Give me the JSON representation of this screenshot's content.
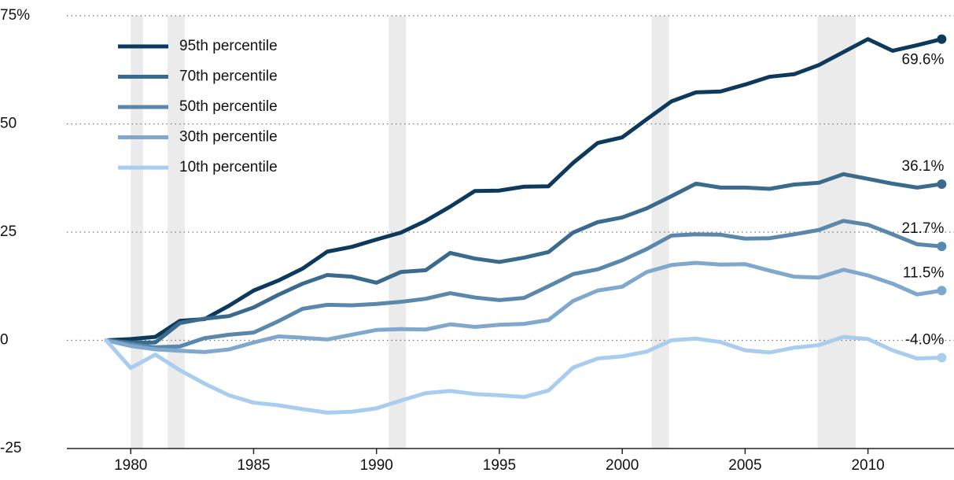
{
  "chart_data": {
    "type": "line",
    "x": [
      1979,
      1980,
      1981,
      1982,
      1983,
      1984,
      1985,
      1986,
      1987,
      1988,
      1989,
      1990,
      1991,
      1992,
      1993,
      1994,
      1995,
      1996,
      1997,
      1998,
      1999,
      2000,
      2001,
      2002,
      2003,
      2004,
      2005,
      2006,
      2007,
      2008,
      2009,
      2010,
      2011,
      2012,
      2013
    ],
    "series": [
      {
        "name": "95th percentile",
        "color": "#0d3a5c",
        "values": [
          0,
          0.3,
          0.8,
          4.5,
          4.9,
          8,
          11.5,
          13.8,
          16.6,
          20.5,
          21.6,
          23.3,
          24.9,
          27.6,
          30.9,
          34.5,
          34.6,
          35.5,
          35.6,
          41,
          45.6,
          46.9,
          51.1,
          55.2,
          57.3,
          57.5,
          59.1,
          60.9,
          61.5,
          63.6,
          66.6,
          69.6,
          66.9,
          68.2,
          69.6
        ],
        "value_labels": [
          null,
          null,
          null,
          null,
          null,
          null,
          null,
          null,
          null,
          null,
          null,
          null,
          null,
          null,
          null,
          null,
          null,
          null,
          null,
          null,
          null,
          null,
          null,
          null,
          null,
          null,
          null,
          null,
          null,
          null,
          null,
          null,
          null,
          null,
          "69.6%"
        ]
      },
      {
        "name": "70th percentile",
        "color": "#3a6a8e",
        "values": [
          0,
          -0.5,
          -0.5,
          4,
          5,
          5.6,
          7.6,
          10.5,
          13.1,
          15.1,
          14.7,
          13.3,
          15.8,
          16.2,
          20.2,
          18.9,
          18.1,
          19.1,
          20.4,
          24.9,
          27.3,
          28.4,
          30.5,
          33.3,
          36.2,
          35.3,
          35.3,
          35,
          36,
          36.4,
          38.4,
          37.3,
          36.2,
          35.3,
          36.1
        ],
        "value_labels": [
          null,
          null,
          null,
          null,
          null,
          null,
          null,
          null,
          null,
          null,
          null,
          null,
          null,
          null,
          null,
          null,
          null,
          null,
          null,
          null,
          null,
          null,
          null,
          null,
          null,
          null,
          null,
          null,
          null,
          null,
          null,
          null,
          null,
          null,
          "36.1%"
        ]
      },
      {
        "name": "50th percentile",
        "color": "#5a88ad",
        "values": [
          0,
          -0.9,
          -1.6,
          -1.4,
          0.5,
          1.3,
          1.8,
          4.4,
          7.3,
          8.2,
          8.1,
          8.4,
          8.9,
          9.6,
          10.9,
          9.9,
          9.3,
          9.8,
          12.5,
          15.3,
          16.4,
          18.5,
          21.1,
          24.2,
          24.5,
          24.4,
          23.5,
          23.6,
          24.5,
          25.5,
          27.6,
          26.7,
          24.5,
          22.2,
          21.7
        ],
        "value_labels": [
          null,
          null,
          null,
          null,
          null,
          null,
          null,
          null,
          null,
          null,
          null,
          null,
          null,
          null,
          null,
          null,
          null,
          null,
          null,
          null,
          null,
          null,
          null,
          null,
          null,
          null,
          null,
          null,
          null,
          null,
          null,
          null,
          null,
          null,
          "21.7%"
        ]
      },
      {
        "name": "30th percentile",
        "color": "#7fa8cc",
        "values": [
          0,
          -1.3,
          -2.1,
          -2.4,
          -2.7,
          -2.1,
          -0.5,
          0.9,
          0.6,
          0.2,
          1.3,
          2.4,
          2.6,
          2.5,
          3.7,
          3.1,
          3.6,
          3.8,
          4.7,
          9.1,
          11.5,
          12.4,
          15.8,
          17.4,
          17.9,
          17.5,
          17.6,
          16.1,
          14.7,
          14.5,
          16.3,
          15,
          13.1,
          10.6,
          11.5
        ],
        "value_labels": [
          null,
          null,
          null,
          null,
          null,
          null,
          null,
          null,
          null,
          null,
          null,
          null,
          null,
          null,
          null,
          null,
          null,
          null,
          null,
          null,
          null,
          null,
          null,
          null,
          null,
          null,
          null,
          null,
          null,
          null,
          null,
          null,
          null,
          null,
          "11.5%"
        ]
      },
      {
        "name": "10th percentile",
        "color": "#a9cdee",
        "values": [
          0,
          -6.4,
          -3.3,
          -6.9,
          -10,
          -12.7,
          -14.4,
          -15,
          -15.9,
          -16.7,
          -16.5,
          -15.7,
          -13.9,
          -12.2,
          -11.7,
          -12.4,
          -12.7,
          -13.1,
          -11.6,
          -6.3,
          -4.2,
          -3.7,
          -2.6,
          0,
          0.4,
          -0.4,
          -2.3,
          -2.8,
          -1.7,
          -1.1,
          0.8,
          0.3,
          -2.3,
          -4.2,
          -4.0
        ],
        "value_labels": [
          null,
          null,
          null,
          null,
          null,
          null,
          null,
          null,
          null,
          null,
          null,
          null,
          null,
          null,
          null,
          null,
          null,
          null,
          null,
          null,
          null,
          null,
          null,
          null,
          null,
          null,
          null,
          null,
          null,
          null,
          null,
          null,
          null,
          null,
          "-4.0%"
        ]
      }
    ],
    "recessions": [
      [
        1980,
        1980.5
      ],
      [
        1981.5,
        1982.2
      ],
      [
        1990.5,
        1991.2
      ],
      [
        2001.2,
        2001.9
      ],
      [
        2007.95,
        2009.5
      ]
    ],
    "xlim": [
      1977.4,
      2013.5
    ],
    "xticks": [
      1980,
      1985,
      1990,
      1995,
      2000,
      2005,
      2010
    ],
    "ylim": [
      -25,
      75
    ],
    "yticks": [
      {
        "value": 75,
        "label": "75%"
      },
      50,
      25,
      0,
      -25
    ],
    "grid": true,
    "legend": "upper left"
  }
}
